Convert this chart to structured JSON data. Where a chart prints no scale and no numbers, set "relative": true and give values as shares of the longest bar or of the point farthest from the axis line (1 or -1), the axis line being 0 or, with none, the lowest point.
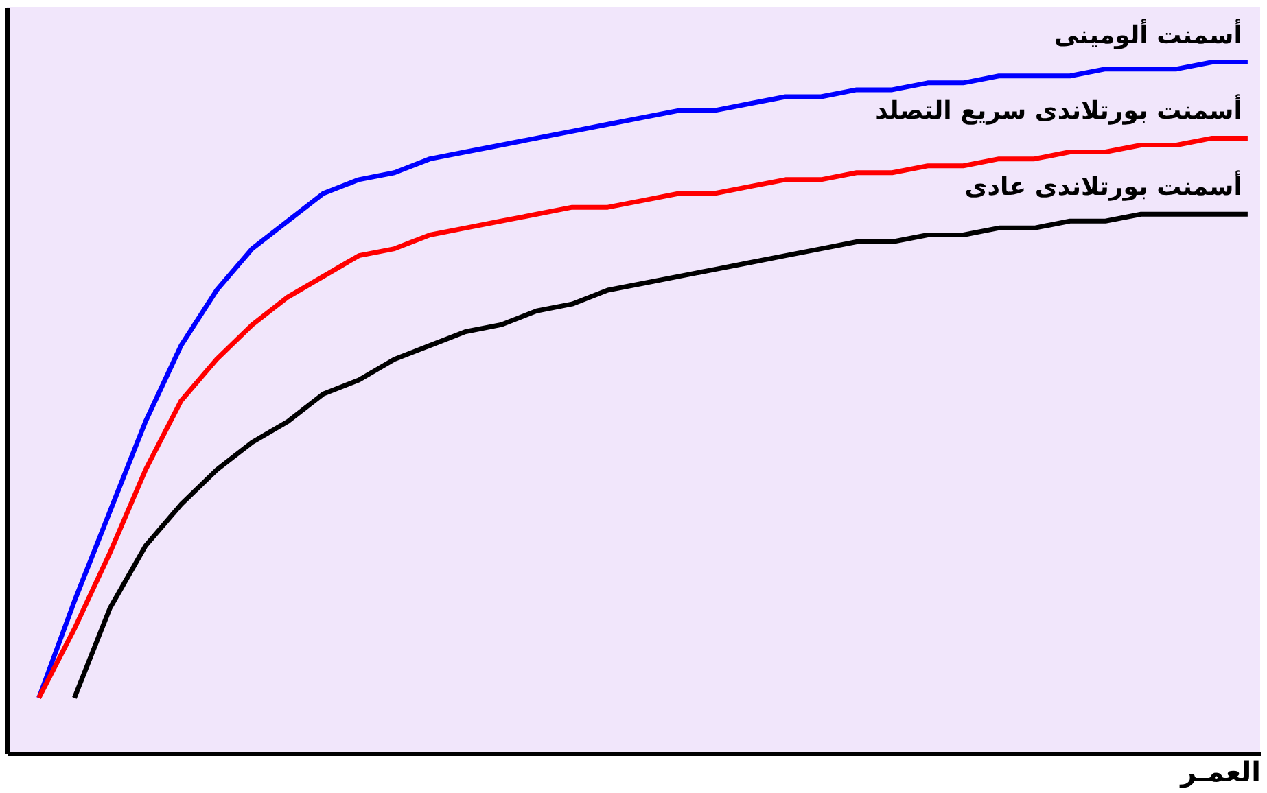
{
  "chart_data": {
    "type": "line",
    "relative": true,
    "xlabel": "العمـر",
    "grid": false,
    "legend": false,
    "marker": "none",
    "line_style": "solid",
    "categories": [
      null,
      null,
      null,
      null,
      null,
      null,
      null,
      null,
      null,
      null,
      null,
      null,
      null,
      null,
      null,
      null,
      null,
      null,
      null,
      null,
      null,
      null,
      null,
      null,
      null,
      null,
      null,
      null,
      null,
      null,
      null,
      null,
      null,
      null,
      null
    ],
    "series": [
      {
        "name": "أسمنت ألومينى",
        "color": "#0000ff",
        "values": [
          0.08,
          0.22,
          0.35,
          0.48,
          0.59,
          0.67,
          0.73,
          0.77,
          0.81,
          0.83,
          0.84,
          0.86,
          0.87,
          0.88,
          0.89,
          0.9,
          0.91,
          0.92,
          0.93,
          0.93,
          0.94,
          0.95,
          0.95,
          0.96,
          0.96,
          0.97,
          0.97,
          0.98,
          0.98,
          0.98,
          0.99,
          0.99,
          0.99,
          1.0,
          1.0
        ]
      },
      {
        "name": "أسمنت بورتلاندى سريع التصلد",
        "color": "#ff0000",
        "values": [
          0.08,
          0.18,
          0.29,
          0.41,
          0.51,
          0.57,
          0.62,
          0.66,
          0.69,
          0.72,
          0.73,
          0.75,
          0.76,
          0.77,
          0.78,
          0.79,
          0.79,
          0.8,
          0.81,
          0.81,
          0.82,
          0.83,
          0.83,
          0.84,
          0.84,
          0.85,
          0.85,
          0.86,
          0.86,
          0.87,
          0.87,
          0.88,
          0.88,
          0.89,
          0.89
        ]
      },
      {
        "name": "أسمنت بورتلاندى عادى",
        "color": "#000000",
        "values": [
          null,
          0.08,
          0.21,
          0.3,
          0.36,
          0.41,
          0.45,
          0.48,
          0.52,
          0.54,
          0.57,
          0.59,
          0.61,
          0.62,
          0.64,
          0.65,
          0.67,
          0.68,
          0.69,
          0.7,
          0.71,
          0.72,
          0.73,
          0.74,
          0.74,
          0.75,
          0.75,
          0.76,
          0.76,
          0.77,
          0.77,
          0.78,
          0.78,
          0.78,
          0.78
        ]
      }
    ]
  }
}
